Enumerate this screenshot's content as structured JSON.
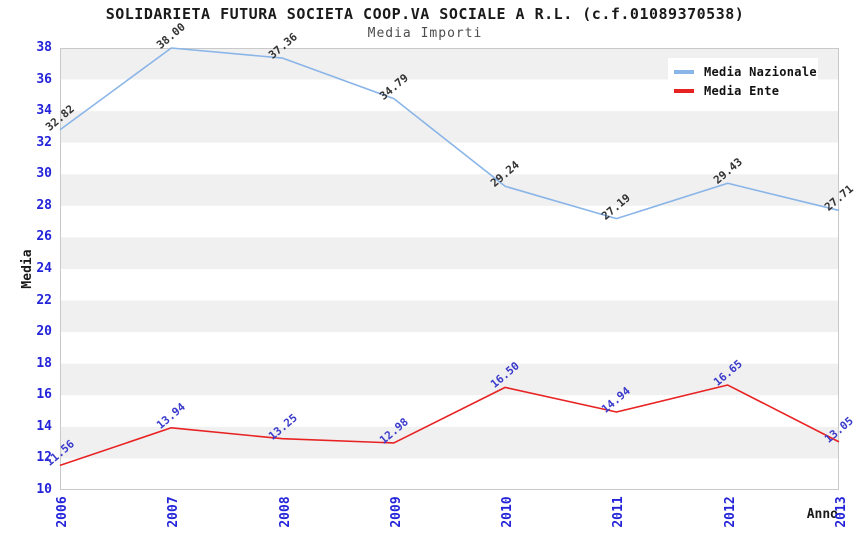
{
  "chart_data": {
    "type": "line",
    "title": "SOLIDARIETA FUTURA SOCIETA COOP.VA SOCIALE A R.L. (c.f.01089370538)",
    "subtitle": "Media Importi",
    "xlabel": "Anno",
    "ylabel": "Media",
    "x": [
      "2006",
      "2007",
      "2008",
      "2009",
      "2010",
      "2011",
      "2012",
      "2013"
    ],
    "series": [
      {
        "name": "Media Nazionale",
        "color": "#8ab5e8",
        "label_color": "#333333",
        "values": [
          32.82,
          38.0,
          37.36,
          34.79,
          29.24,
          27.19,
          29.43,
          27.71
        ]
      },
      {
        "name": "Media Ente",
        "color": "#e82222",
        "label_color": "#3a3acc",
        "values": [
          11.56,
          13.94,
          13.25,
          12.98,
          16.5,
          14.94,
          16.65,
          13.05
        ]
      }
    ],
    "ylim": [
      10,
      38
    ],
    "ytick_step": 2,
    "axis_tick_color": "#2323d9",
    "band_colors": [
      "#f0f0f0",
      "#ffffff"
    ],
    "plot_border_color": "#c9c9c9",
    "grid": "horizontal-bands",
    "legend_position": "top-right"
  }
}
